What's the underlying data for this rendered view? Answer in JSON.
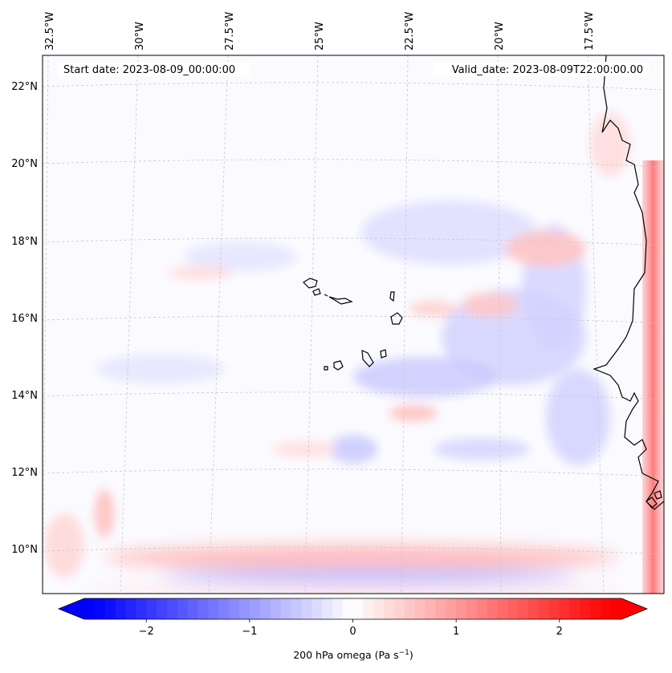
{
  "header": {
    "start_date": "Start date: 2023-08-09_00:00:00",
    "valid_date": "Valid_date: 2023-08-09T22:00:00.00"
  },
  "axes": {
    "lon_labels": [
      "32.5°W",
      "30°W",
      "27.5°W",
      "25°W",
      "22.5°W",
      "20°W",
      "17.5°W"
    ],
    "lat_labels": [
      "22°N",
      "20°N",
      "18°N",
      "16°N",
      "14°N",
      "12°N",
      "10°N"
    ]
  },
  "colorbar": {
    "label": "200 hPa omega (Pa s",
    "label_exponent": "−1",
    "label_close": ")",
    "ticks": [
      "−2",
      "−1",
      "0",
      "1",
      "2"
    ],
    "tick_values": [
      -2,
      -1,
      0,
      1,
      2
    ],
    "range": [
      -2.6,
      2.6
    ],
    "negative_color": "#0000ff",
    "neutral_color": "#ffffff",
    "positive_color": "#ff0000"
  },
  "map": {
    "coastline_color": "#000000",
    "gridline_color": "#c8c8c8"
  }
}
